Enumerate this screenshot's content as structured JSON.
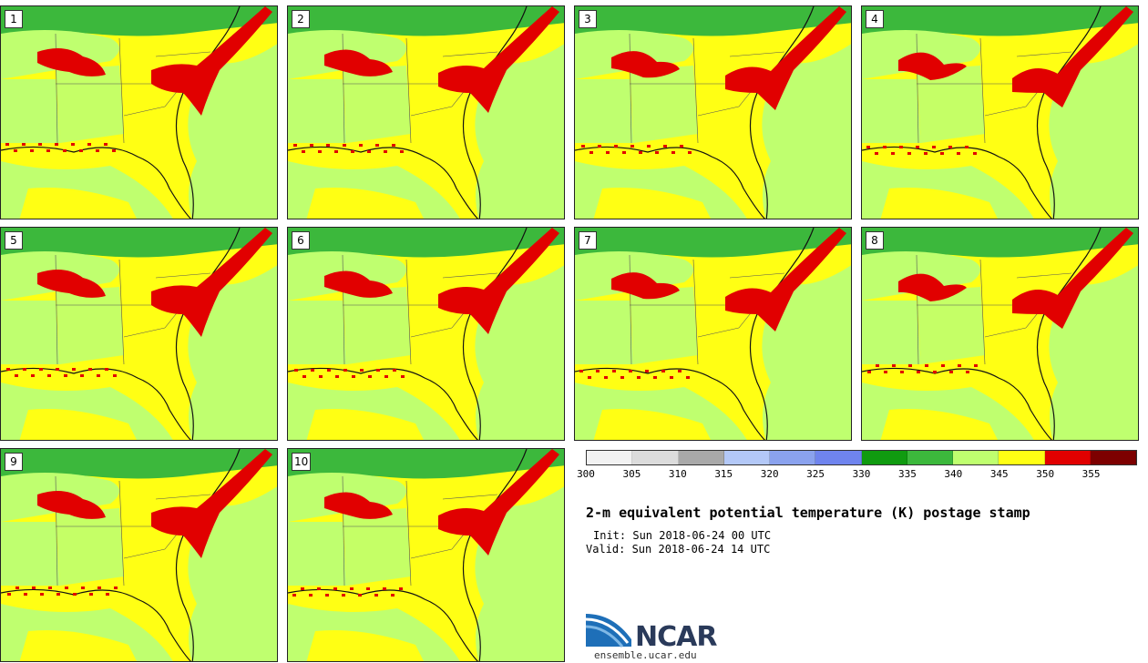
{
  "panels": [
    {
      "label": "1"
    },
    {
      "label": "2"
    },
    {
      "label": "3"
    },
    {
      "label": "4"
    },
    {
      "label": "5"
    },
    {
      "label": "6"
    },
    {
      "label": "7"
    },
    {
      "label": "8"
    },
    {
      "label": "9"
    },
    {
      "label": "10"
    }
  ],
  "colorbar": {
    "colors": [
      "#f2f2f2",
      "#dcdcdc",
      "#a9a9a9",
      "#b3c8f7",
      "#8aa2ee",
      "#6f84ee",
      "#109b10",
      "#3cb83c",
      "#bfff6f",
      "#ffff14",
      "#e10000",
      "#7d0000"
    ],
    "ticks": [
      "300",
      "305",
      "310",
      "315",
      "320",
      "325",
      "330",
      "335",
      "340",
      "345",
      "350",
      "355"
    ]
  },
  "title": "2-m equivalent potential temperature (K) postage stamp",
  "init": "Init: Sun 2018-06-24 00 UTC",
  "valid": "Valid: Sun 2018-06-24 14 UTC",
  "logo": {
    "name": "NCAR",
    "url": "ensemble.ucar.edu"
  },
  "map_colors": {
    "yellow": "#ffff14",
    "lightgreen": "#bfff6f",
    "green": "#3cb83c",
    "red": "#e10000"
  }
}
